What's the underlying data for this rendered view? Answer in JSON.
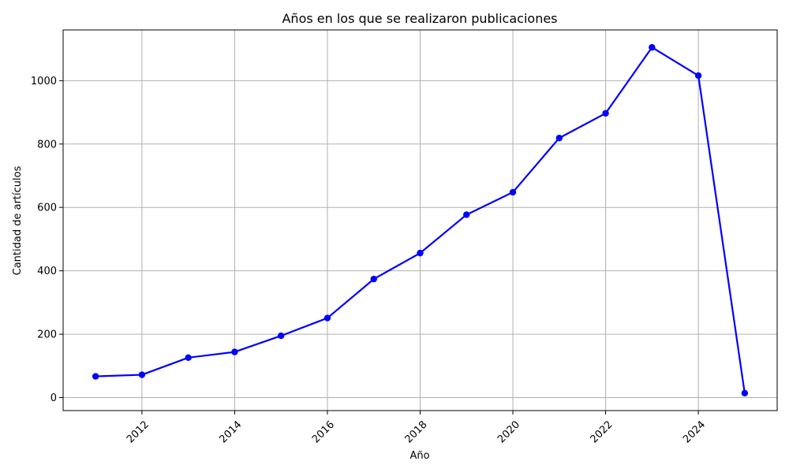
{
  "chart_data": {
    "type": "line",
    "title": "Años en los que se realizaron publicaciones",
    "xlabel": "Año",
    "ylabel": "Cantidad de artículos",
    "x": [
      2011,
      2012,
      2013,
      2014,
      2015,
      2016,
      2017,
      2018,
      2019,
      2020,
      2021,
      2022,
      2023,
      2024,
      2025
    ],
    "series": [
      {
        "values": [
          67,
          72,
          126,
          144,
          195,
          251,
          374,
          456,
          577,
          648,
          819,
          897,
          1105,
          1016,
          14
        ],
        "color": "#0000ff",
        "marker": "circle"
      }
    ],
    "xlim": [
      2010.3,
      2025.7
    ],
    "ylim": [
      -41,
      1160
    ],
    "xticks": [
      2012,
      2014,
      2016,
      2018,
      2020,
      2022,
      2024
    ],
    "xtick_labels": [
      "2012",
      "2014",
      "2016",
      "2018",
      "2020",
      "2022",
      "2024"
    ],
    "yticks": [
      0,
      200,
      400,
      600,
      800,
      1000
    ],
    "ytick_labels": [
      "0",
      "200",
      "400",
      "600",
      "800",
      "1000"
    ],
    "grid": true,
    "xtick_rotation_deg": 45
  }
}
